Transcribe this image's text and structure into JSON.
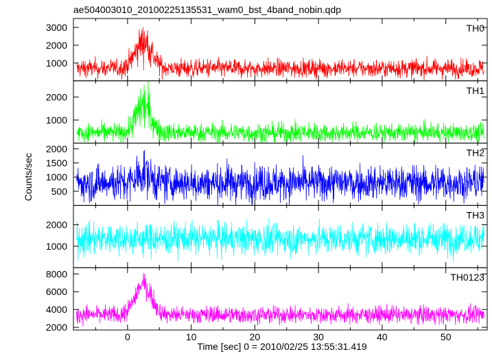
{
  "chart_data": {
    "type": "line",
    "title": "ae504003010_20100225135531_wam0_bst_4band_nobin.qdp",
    "xlabel": "Time [sec] 0 = 2010/02/25 13:55:31.419",
    "ylabel": "Counts/sec",
    "xlim": [
      -8.5,
      56.5
    ],
    "x_ticks": [
      0,
      10,
      20,
      30,
      40,
      50
    ],
    "x_range": [
      -8,
      56
    ],
    "grid": false,
    "panels": [
      {
        "name": "TH0",
        "color": "#ff0000",
        "ylim": [
          0,
          3500
        ],
        "yticks": [
          1000,
          2000,
          3000
        ],
        "baseline": 700,
        "noise": 520,
        "peak": 1500,
        "peak_t": 2.5,
        "width": 1.8
      },
      {
        "name": "TH1",
        "color": "#00ff00",
        "ylim": [
          0,
          2700
        ],
        "yticks": [
          1000,
          2000
        ],
        "baseline": 450,
        "noise": 420,
        "peak": 1200,
        "peak_t": 2.5,
        "width": 1.6
      },
      {
        "name": "TH2",
        "color": "#0000ff",
        "ylim": [
          0,
          2200
        ],
        "yticks": [
          500,
          1000,
          1500,
          2000
        ],
        "baseline": 800,
        "noise": 650,
        "peak": 350,
        "peak_t": 2.5,
        "width": 1.5
      },
      {
        "name": "TH3",
        "color": "#00ffff",
        "ylim": [
          0,
          2900
        ],
        "yticks": [
          1000,
          2000
        ],
        "baseline": 1350,
        "noise": 750,
        "peak": 0,
        "peak_t": 2.5,
        "width": 1.5
      },
      {
        "name": "TH0123",
        "color": "#ff00ff",
        "ylim": [
          1700,
          8700
        ],
        "yticks": [
          2000,
          4000,
          6000,
          8000
        ],
        "baseline": 3400,
        "noise": 1000,
        "peak": 3400,
        "peak_t": 2.5,
        "width": 1.8
      }
    ]
  }
}
